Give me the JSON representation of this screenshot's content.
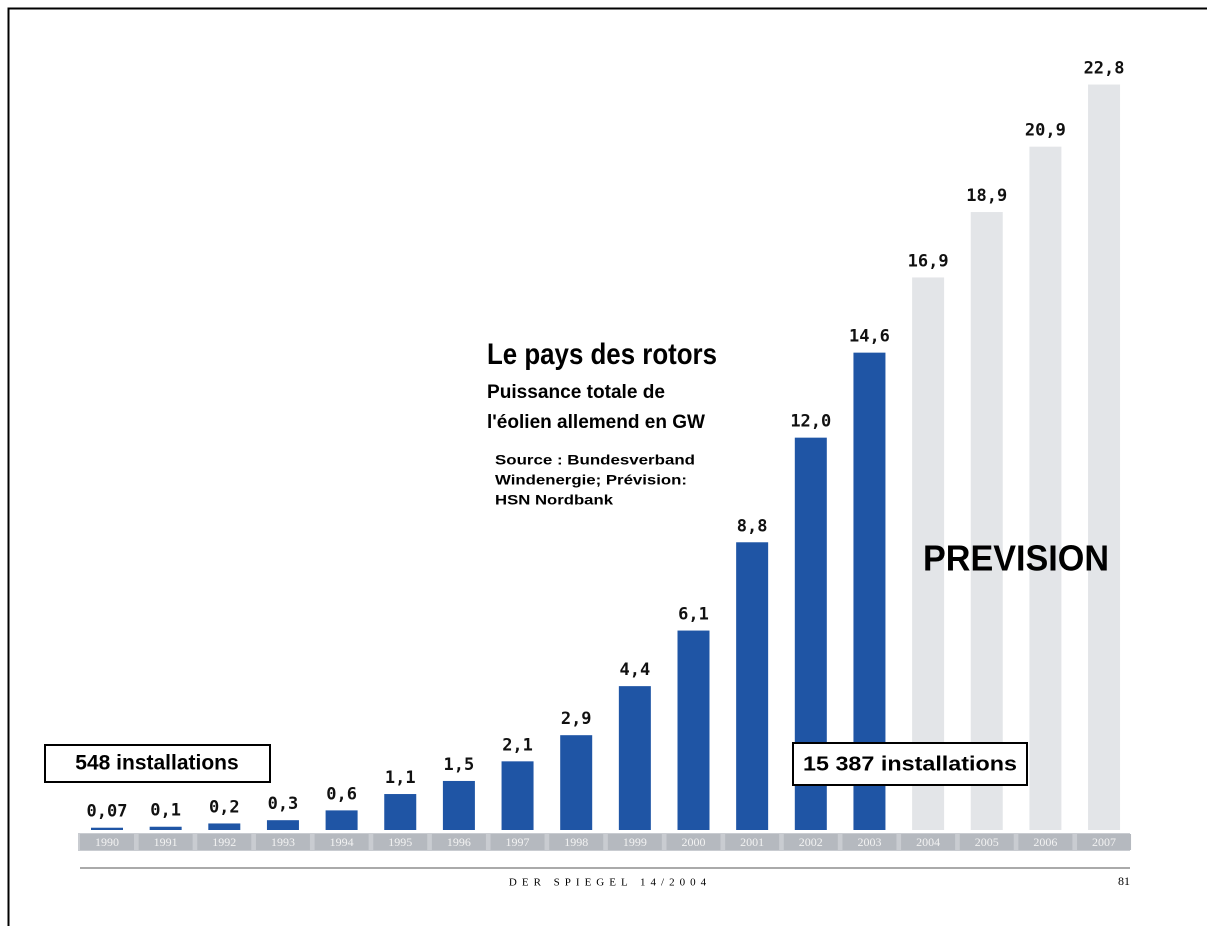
{
  "chart_data": {
    "type": "bar",
    "title": "Le pays des rotors",
    "subtitle": [
      "Puissance totale de",
      "l'éolien allemend en GW"
    ],
    "source": [
      "Source : Bundesverband",
      "Windenergie; Prévision:",
      "HSN Nordbank"
    ],
    "annotations": [
      "548 installations",
      "15 387 installations",
      "PREVISION"
    ],
    "footer": "DER SPIEGEL 14/2004",
    "page_number": "81",
    "categories": [
      "1990",
      "1991",
      "1992",
      "1993",
      "1994",
      "1995",
      "1996",
      "1997",
      "1998",
      "1999",
      "2000",
      "2001",
      "2002",
      "2003",
      "2004",
      "2005",
      "2006",
      "2007"
    ],
    "values": [
      0.07,
      0.1,
      0.2,
      0.3,
      0.6,
      1.1,
      1.5,
      2.1,
      2.9,
      4.4,
      6.1,
      8.8,
      12.0,
      14.6,
      16.9,
      18.9,
      20.9,
      22.8
    ],
    "value_labels": [
      "0,07",
      "0,1",
      "0,2",
      "0,3",
      "0,6",
      "1,1",
      "1,5",
      "2,1",
      "2,9",
      "4,4",
      "6,1",
      "8,8",
      "12,0",
      "14,6",
      "16,9",
      "18,9",
      "20,9",
      "22,8"
    ],
    "colors": [
      "#1f55a5",
      "#1f55a5",
      "#1f55a5",
      "#1f55a5",
      "#1f55a5",
      "#1f55a5",
      "#1f55a5",
      "#1f55a5",
      "#1f55a5",
      "#1f55a5",
      "#1f55a5",
      "#1f55a5",
      "#1f55a5",
      "#1f55a5",
      "#e3e5e8",
      "#e3e5e8",
      "#e3e5e8",
      "#e3e5e8"
    ],
    "ylim": [
      0,
      23
    ]
  }
}
